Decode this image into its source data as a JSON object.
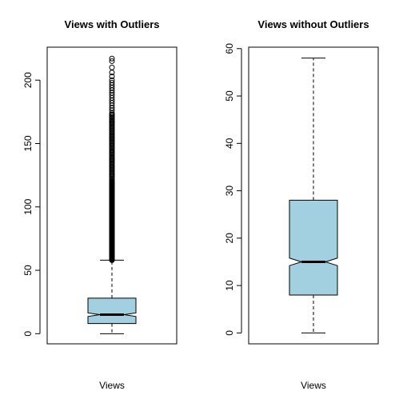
{
  "chart_data": [
    {
      "type": "boxplot",
      "title": "Views with Outliers",
      "xlabel": "Views",
      "ylabel": "",
      "ylim": [
        -8,
        226
      ],
      "yticks": [
        0,
        50,
        100,
        150,
        200
      ],
      "notch": true,
      "box_fill": "#A3D0E0",
      "line_color": "#000000",
      "stats": {
        "min": 0,
        "q1": 8,
        "median": 15,
        "q3": 28,
        "whisker_high": 58
      },
      "notch_interval": [
        13.6,
        16.4
      ],
      "outliers": [
        58,
        58.5,
        59,
        59.5,
        60,
        60.5,
        61,
        61.5,
        62,
        62.5,
        63,
        63.5,
        64,
        64.5,
        65,
        65.5,
        66,
        66.5,
        67,
        67.5,
        68,
        68.5,
        69,
        69.5,
        70,
        70.5,
        71,
        71.5,
        72,
        72.5,
        73,
        73.5,
        74,
        74.5,
        75,
        75.5,
        76,
        76.5,
        77,
        77.5,
        78,
        78.5,
        79,
        79.5,
        80,
        80.5,
        81,
        81.5,
        82,
        82.5,
        83,
        83.5,
        84,
        84.5,
        85,
        85.5,
        86,
        86.5,
        87,
        87.5,
        88,
        88.5,
        89,
        89.5,
        90,
        90.5,
        91,
        91.5,
        92,
        92.5,
        93,
        93.5,
        94,
        94.5,
        95,
        95.5,
        96,
        96.5,
        97,
        97.5,
        98,
        98.5,
        99,
        99.5,
        100,
        100.5,
        101,
        101.5,
        102,
        102.5,
        103,
        103.5,
        104,
        104.5,
        105,
        105.5,
        106,
        106.5,
        107,
        107.5,
        108,
        108.5,
        109,
        109.5,
        110,
        110.5,
        111,
        111.5,
        112,
        112.5,
        113,
        113.5,
        114,
        114.5,
        115,
        115.5,
        116,
        116.5,
        117,
        117.5,
        118,
        118.5,
        119,
        119.5,
        120,
        121,
        122,
        123,
        124,
        125,
        126,
        127,
        128,
        129,
        130,
        131,
        132,
        133,
        134,
        135,
        136,
        137,
        138,
        139,
        140,
        141,
        142,
        143,
        144,
        145,
        146,
        147,
        148,
        149,
        150,
        151,
        152,
        153,
        154,
        155,
        156,
        157,
        158,
        159,
        160,
        161,
        162,
        163,
        164,
        165,
        166,
        167,
        168,
        169,
        170,
        171,
        172,
        173,
        174,
        176,
        178,
        180,
        182,
        184,
        186,
        188,
        190,
        192,
        194,
        196,
        198,
        200,
        203,
        206,
        210,
        215,
        217
      ]
    },
    {
      "type": "boxplot",
      "title": "Views without Outliers",
      "xlabel": "Views",
      "ylabel": "",
      "ylim": [
        -2.3,
        60.3
      ],
      "yticks": [
        0,
        10,
        20,
        30,
        40,
        50,
        60
      ],
      "notch": true,
      "box_fill": "#A3D0E0",
      "line_color": "#000000",
      "stats": {
        "min": 0,
        "q1": 8,
        "median": 15,
        "q3": 28,
        "whisker_high": 58
      },
      "notch_interval": [
        14.2,
        15.8
      ],
      "outliers": []
    }
  ]
}
